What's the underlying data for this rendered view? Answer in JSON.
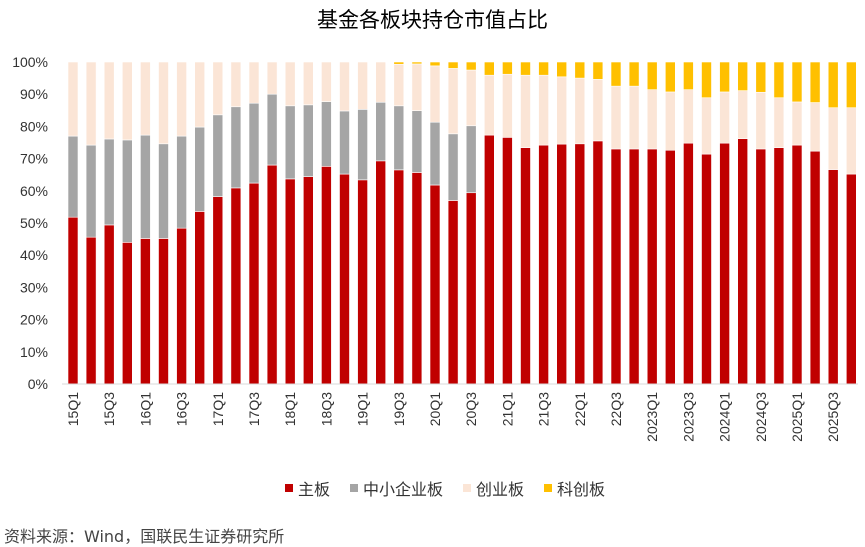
{
  "chart_data": {
    "type": "bar",
    "stacked": true,
    "title": "基金各板块持仓市值占比",
    "xlabel": "",
    "ylabel": "",
    "ylim": [
      0,
      100
    ],
    "yticks": [
      "0%",
      "10%",
      "20%",
      "30%",
      "40%",
      "50%",
      "60%",
      "70%",
      "80%",
      "90%",
      "100%"
    ],
    "categories": [
      "15Q1",
      "",
      "15Q3",
      "",
      "16Q1",
      "",
      "16Q3",
      "",
      "17Q1",
      "",
      "17Q3",
      "",
      "18Q1",
      "",
      "18Q3",
      "",
      "19Q1",
      "",
      "19Q3",
      "",
      "20Q1",
      "",
      "20Q3",
      "",
      "21Q1",
      "",
      "21Q3",
      "",
      "22Q1",
      "",
      "22Q3",
      "",
      "2023Q1",
      "",
      "2023Q3",
      "",
      "2024Q1",
      "",
      "2024Q3",
      "",
      "2025Q1",
      "",
      "2025Q3",
      ""
    ],
    "legend_position": "bottom",
    "grid": false,
    "series": [
      {
        "name": "主板",
        "color": "#C00000",
        "values": [
          51.8,
          45.6,
          49.4,
          44.0,
          45.2,
          45.2,
          48.4,
          53.6,
          58.2,
          60.9,
          62.4,
          68.0,
          63.7,
          64.4,
          67.6,
          65.2,
          63.4,
          69.3,
          66.5,
          65.7,
          61.8,
          57.0,
          59.4,
          77.3,
          76.6,
          73.4,
          74.2,
          74.5,
          74.6,
          75.5,
          73.0,
          73.0,
          73.0,
          72.6,
          74.8,
          71.4,
          74.8,
          76.2,
          73.0,
          73.4,
          74.2,
          72.3,
          66.6,
          65.2
        ]
      },
      {
        "name": "中小企业板",
        "color": "#A5A5A5",
        "values": [
          25.2,
          28.6,
          26.7,
          31.8,
          32.1,
          29.4,
          28.6,
          26.2,
          25.4,
          25.2,
          24.8,
          22.0,
          22.7,
          22.3,
          20.1,
          19.6,
          21.9,
          18.2,
          19.9,
          19.2,
          19.5,
          20.7,
          20.8,
          0,
          0,
          0,
          0,
          0,
          0,
          0,
          0,
          0,
          0,
          0,
          0,
          0,
          0,
          0,
          0,
          0,
          0,
          0,
          0,
          0
        ]
      },
      {
        "name": "创业板",
        "color": "#FBE5D6",
        "values": [
          23.0,
          25.8,
          23.9,
          24.2,
          22.7,
          25.4,
          23.0,
          20.2,
          16.4,
          13.9,
          12.8,
          10.0,
          13.6,
          13.3,
          12.3,
          15.2,
          14.7,
          12.5,
          12.9,
          14.5,
          17.5,
          20.3,
          17.3,
          18.6,
          19.6,
          22.5,
          21.7,
          20.9,
          20.4,
          19.1,
          19.5,
          19.5,
          18.4,
          18.1,
          16.6,
          17.5,
          15.9,
          14.9,
          17.6,
          15.5,
          13.4,
          15.1,
          19.2,
          20.6
        ]
      },
      {
        "name": "科创板",
        "color": "#FFC000",
        "values": [
          0,
          0,
          0,
          0,
          0,
          0,
          0,
          0,
          0,
          0,
          0,
          0,
          0,
          0,
          0,
          0,
          0,
          0,
          0.7,
          0.6,
          1.2,
          2.0,
          2.5,
          4.1,
          3.8,
          4.1,
          4.1,
          4.6,
          5.0,
          5.4,
          7.5,
          7.5,
          8.6,
          9.3,
          8.6,
          11.1,
          9.3,
          8.9,
          9.4,
          11.1,
          12.4,
          12.6,
          14.2,
          14.2
        ]
      }
    ]
  },
  "source": "资料来源：Wind，国联民生证券研究所"
}
